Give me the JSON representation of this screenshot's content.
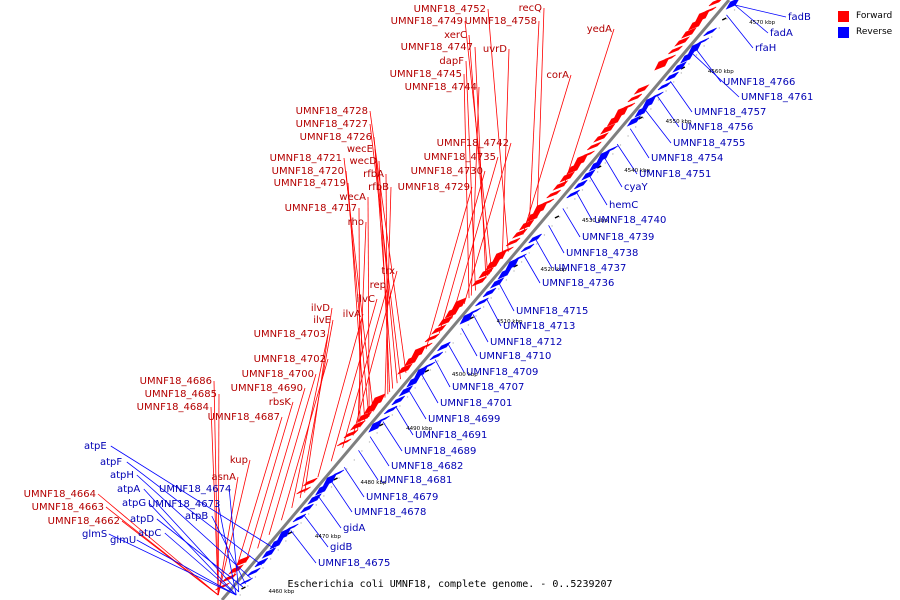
{
  "caption": "Escherichia coli UMNF18, complete genome. - 0..5239207",
  "legend": [
    {
      "label": "Forward",
      "color": "#ff0000"
    },
    {
      "label": "Reverse",
      "color": "#0000ff"
    }
  ],
  "colors": {
    "forward": "#ff0000",
    "reverse": "#0000ff",
    "backbone": "#7f7f7f",
    "leader_forward": "#ff0000",
    "leader_reverse": "#0000ff"
  },
  "ticks": [
    "4460 kbp",
    "4470 kbp",
    "4480 kbp",
    "4490 kbp",
    "4500 kbp",
    "4510 kbp",
    "4520 kbp",
    "4530 kbp",
    "4540 kbp",
    "4550 kbp",
    "4560 kbp",
    "4570 kbp"
  ],
  "forward_labels": [
    "recQ",
    "UMNF18_4752",
    "UMNF18_4749",
    "UMNF18_4758",
    "yedA",
    "xerC",
    "UMNF18_4747",
    "uvrD",
    "dapF",
    "corA",
    "UMNF18_4745",
    "UMNF18_4744",
    "UMNF18_4728",
    "UMNF18_4727",
    "UMNF18_4726",
    "UMNF18_4742",
    "wecE",
    "UMNF18_4735",
    "UMNF18_4721",
    "wecD",
    "UMNF18_4720",
    "rfbA",
    "UMNF18_4730",
    "UMNF18_4719",
    "rfbB",
    "UMNF18_4729",
    "wecA",
    "UMNF18_4717",
    "rho",
    "trx",
    "rep",
    "ilvC",
    "ilvD",
    "ilvA",
    "ilvE",
    "UMNF18_4703",
    "UMNF18_4702",
    "UMNF18_4700",
    "UMNF18_4686",
    "UMNF18_4690",
    "UMNF18_4685",
    "rbsK",
    "UMNF18_4684",
    "UMNF18_4687",
    "kup",
    "asnA",
    "UMNF18_4664",
    "UMNF18_4663",
    "UMNF18_4662"
  ],
  "reverse_labels": [
    "fadB",
    "fadA",
    "rfaH",
    "UMNF18_4766",
    "UMNF18_4761",
    "UMNF18_4757",
    "UMNF18_4756",
    "UMNF18_4755",
    "UMNF18_4754",
    "UMNF18_4751",
    "cyaY",
    "hemC",
    "UMNF18_4740",
    "UMNF18_4739",
    "UMNF18_4738",
    "UMNF18_4737",
    "UMNF18_4736",
    "UMNF18_4715",
    "UMNF18_4713",
    "UMNF18_4712",
    "UMNF18_4710",
    "UMNF18_4709",
    "UMNF18_4707",
    "UMNF18_4701",
    "UMNF18_4699",
    "UMNF18_4691",
    "UMNF18_4689",
    "UMNF18_4682",
    "UMNF18_4681",
    "UMNF18_4679",
    "UMNF18_4678",
    "gidA",
    "gidB",
    "UMNF18_4675",
    "atpE",
    "atpF",
    "atpH",
    "atpA",
    "UMNF18_4674",
    "atpG",
    "UMNF18_4673",
    "atpB",
    "atpD",
    "atpC",
    "glmS",
    "glmU"
  ]
}
